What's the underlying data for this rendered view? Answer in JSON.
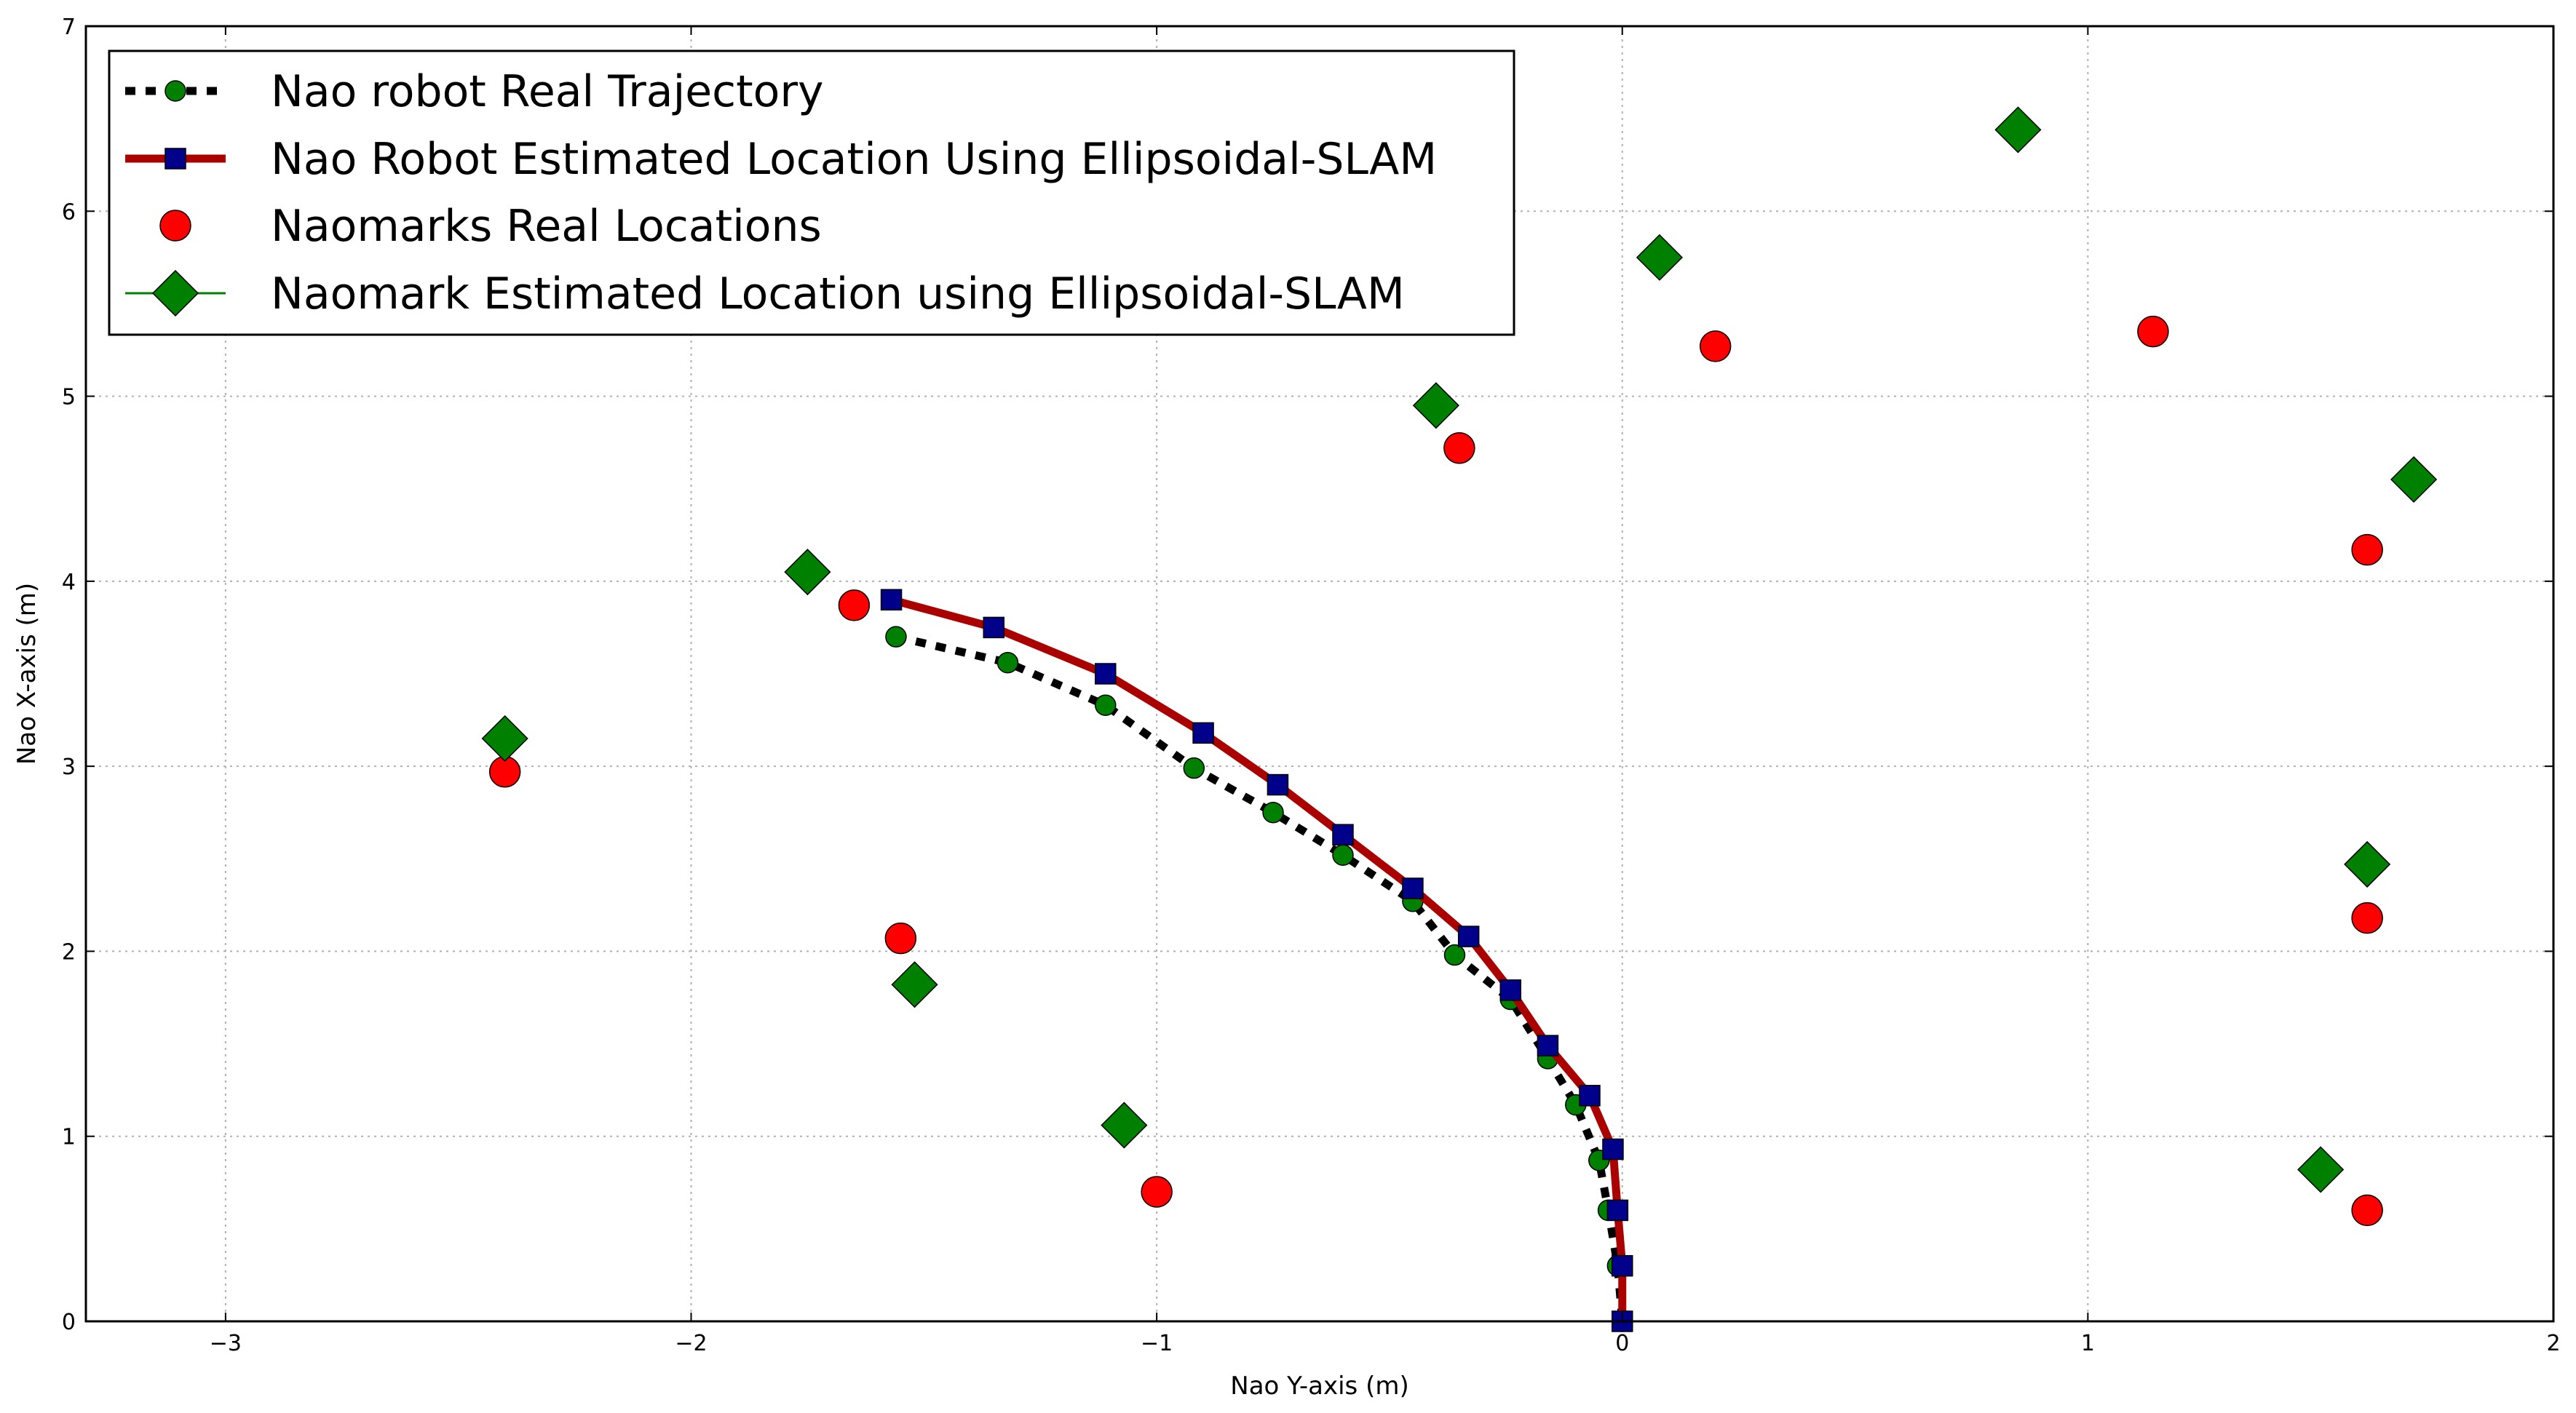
{
  "chart_data": {
    "type": "scatter",
    "title": "",
    "xlabel": "Nao Y-axis (m)",
    "ylabel": "Nao X-axis (m)",
    "xlim": [
      -3.3,
      2.0
    ],
    "ylim": [
      0,
      7
    ],
    "xticks": [
      -3,
      -2,
      -1,
      0,
      1,
      2
    ],
    "yticks": [
      0,
      1,
      2,
      3,
      4,
      5,
      6,
      7
    ],
    "xtick_labels": [
      "−3",
      "−2",
      "−1",
      "0",
      "1",
      "2"
    ],
    "ytick_labels": [
      "0",
      "1",
      "2",
      "3",
      "4",
      "5",
      "6",
      "7"
    ],
    "grid": true,
    "legend_position": "top-left",
    "colors": {
      "real_trajectory_line": "#000000",
      "real_trajectory_marker": "#008000",
      "estimated_line": "#aa0000",
      "estimated_marker": "#00008b",
      "landmark_real": "#ff0000",
      "landmark_estimated": "#008000"
    },
    "series": [
      {
        "name": "Nao robot Real Trajectory",
        "style": "dotted-line-circle",
        "x": [
          -1.56,
          -1.32,
          -1.11,
          -0.92,
          -0.75,
          -0.6,
          -0.45,
          -0.36,
          -0.24,
          -0.16,
          -0.1,
          -0.05,
          -0.03,
          -0.01,
          0.0
        ],
        "y": [
          3.7,
          3.56,
          3.33,
          2.99,
          2.75,
          2.52,
          2.27,
          1.98,
          1.74,
          1.42,
          1.17,
          0.87,
          0.6,
          0.3,
          0.0
        ]
      },
      {
        "name": "Nao Robot Estimated Location Using Ellipsoidal-SLAM",
        "style": "solid-line-square",
        "x": [
          -1.57,
          -1.35,
          -1.11,
          -0.9,
          -0.74,
          -0.6,
          -0.45,
          -0.33,
          -0.24,
          -0.16,
          -0.07,
          -0.02,
          -0.01,
          0.0,
          0.0
        ],
        "y": [
          3.9,
          3.75,
          3.5,
          3.18,
          2.9,
          2.63,
          2.34,
          2.08,
          1.79,
          1.49,
          1.22,
          0.93,
          0.6,
          0.3,
          0.0
        ]
      },
      {
        "name": "Naomarks Real Locations",
        "style": "circle",
        "x": [
          -2.4,
          -1.65,
          -1.55,
          -1.0,
          -0.35,
          0.2,
          1.14,
          1.6,
          1.6,
          1.6
        ],
        "y": [
          2.97,
          3.87,
          2.07,
          0.7,
          4.72,
          5.27,
          5.35,
          4.17,
          2.18,
          0.6
        ]
      },
      {
        "name": "Naomark Estimated Location using Ellipsoidal-SLAM",
        "style": "diamond",
        "x": [
          -2.4,
          -1.75,
          -1.52,
          -1.07,
          -0.4,
          0.08,
          0.85,
          1.7,
          1.6,
          1.5
        ],
        "y": [
          3.15,
          4.05,
          1.82,
          1.06,
          4.95,
          5.75,
          6.44,
          4.55,
          2.47,
          0.82
        ]
      }
    ]
  }
}
